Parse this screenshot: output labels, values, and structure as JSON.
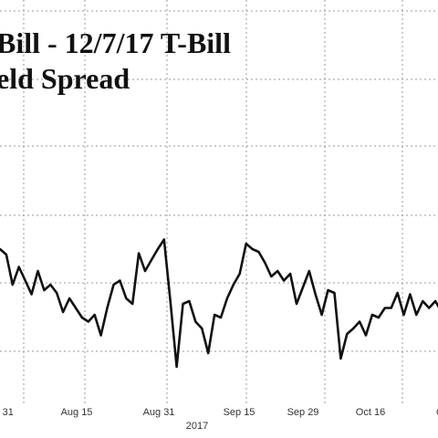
{
  "chart_data": {
    "type": "line",
    "title_lines": [
      "Bill - 12/7/17 T-Bill",
      "eld Spread"
    ],
    "xlabel": "2017",
    "ylabel": "",
    "grid": true,
    "legend": "none",
    "x_tick_labels": [
      "l 31",
      "Aug 15",
      "Aug 31",
      "Sep 15",
      "Sep 29",
      "Oct 16",
      "O"
    ],
    "ylim": [
      0,
      100
    ],
    "series": [
      {
        "values": [
          88,
          84,
          62,
          75,
          65,
          55,
          72,
          58,
          62,
          56,
          42,
          52,
          45,
          38,
          35,
          40,
          25,
          45,
          62,
          65,
          52,
          48,
          85,
          72,
          80,
          88,
          95,
          50,
          2,
          48,
          50,
          35,
          30,
          12,
          40,
          38,
          52,
          62,
          70,
          92,
          88,
          86,
          78,
          68,
          72,
          65,
          70,
          48,
          60,
          72,
          55,
          40,
          58,
          56,
          8,
          26,
          30,
          35,
          25,
          40,
          38,
          45,
          45,
          56,
          40,
          55,
          40,
          50,
          45,
          50,
          42
        ]
      }
    ]
  }
}
